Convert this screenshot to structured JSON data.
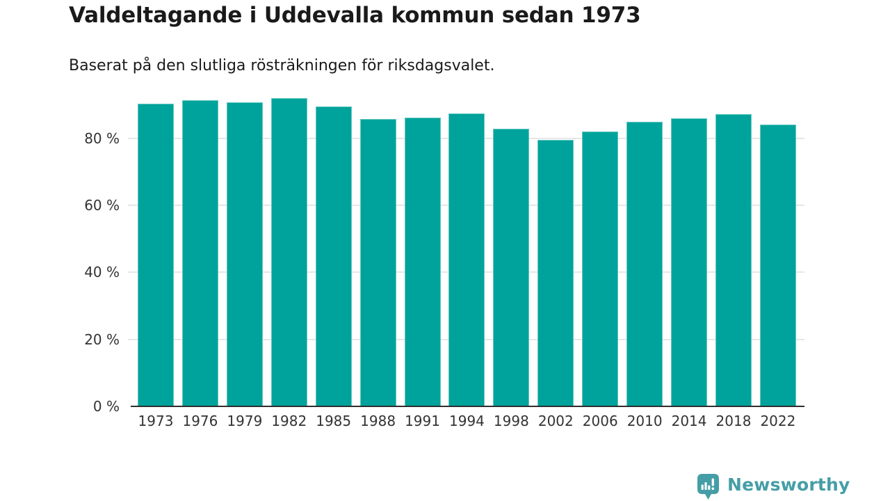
{
  "page": {
    "title": "Valdeltagande i Uddevalla kommun sedan 1973",
    "subtitle": "Baserat på den slutliga rösträkningen för riksdagsvalet."
  },
  "branding": {
    "logo_text": "Newsworthy",
    "logo_icon": "speech-bubble-bar-chart-icon",
    "logo_color": "#459ea6"
  },
  "colors": {
    "bar_fill": "#00a39b",
    "bar_edge": "rgba(255,255,255,0.4)",
    "gridline": "#e6e6e6",
    "axis_line": "#2e2e2e",
    "title_text": "#1a1a1a",
    "axis_text": "#333333"
  },
  "chart_data": {
    "type": "bar",
    "title": "Valdeltagande i Uddevalla kommun sedan 1973",
    "subtitle": "Baserat på den slutliga rösträkningen för riksdagsvalet.",
    "unit": "%",
    "categories": [
      "1973",
      "1976",
      "1979",
      "1982",
      "1985",
      "1988",
      "1991",
      "1994",
      "1998",
      "2002",
      "2006",
      "2010",
      "2014",
      "2018",
      "2022"
    ],
    "values": [
      90.4,
      91.3,
      90.8,
      92.0,
      89.5,
      85.7,
      86.1,
      87.4,
      82.8,
      79.6,
      82.1,
      85.0,
      86.0,
      87.3,
      84.2
    ],
    "y_ticks": [
      0,
      20,
      40,
      60,
      80
    ],
    "y_tick_labels": [
      "0 %",
      "20 %",
      "40 %",
      "60 %",
      "80 %"
    ],
    "ylim": [
      0,
      94.3
    ],
    "grid": true,
    "legend": false,
    "bar_color": "#00a39b"
  }
}
